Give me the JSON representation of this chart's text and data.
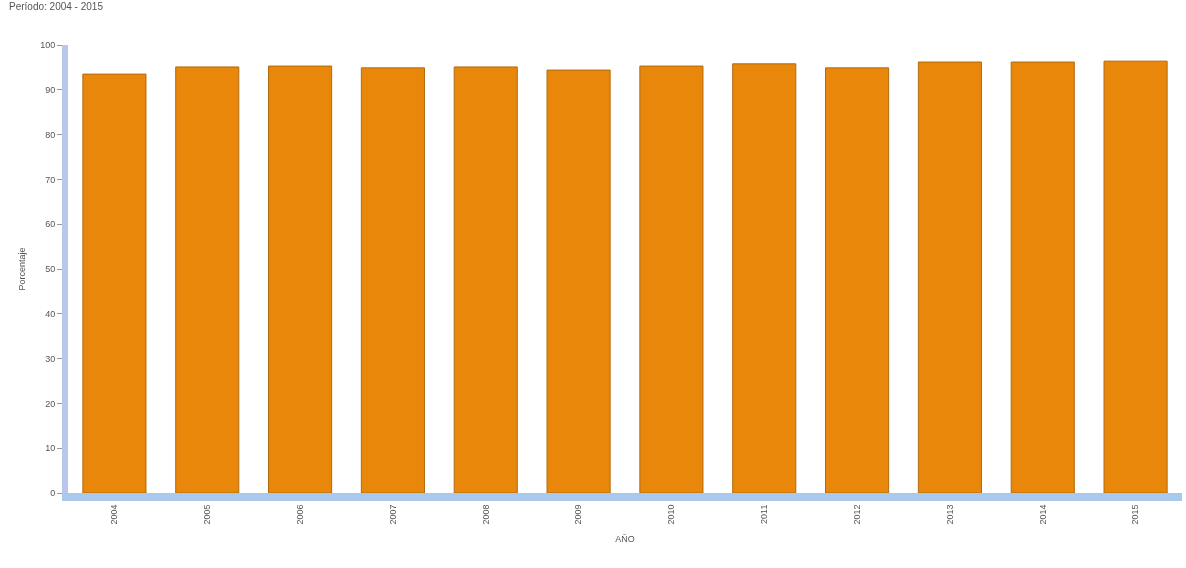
{
  "chart_data": {
    "type": "bar",
    "subtitle": "Período: 2004 - 2015",
    "xlabel": "AÑO",
    "ylabel": "Porcentaje",
    "categories": [
      "2004",
      "2005",
      "2006",
      "2007",
      "2008",
      "2009",
      "2010",
      "2011",
      "2012",
      "2013",
      "2014",
      "2015"
    ],
    "values": [
      93.5,
      95.1,
      95.3,
      94.9,
      95.1,
      94.4,
      95.3,
      95.8,
      94.9,
      96.2,
      96.2,
      96.4
    ],
    "color": "#e8870a",
    "ylim": [
      0,
      100
    ],
    "yticks": [
      0,
      10,
      20,
      30,
      40,
      50,
      60,
      70,
      80,
      90,
      100
    ],
    "grid": false
  }
}
